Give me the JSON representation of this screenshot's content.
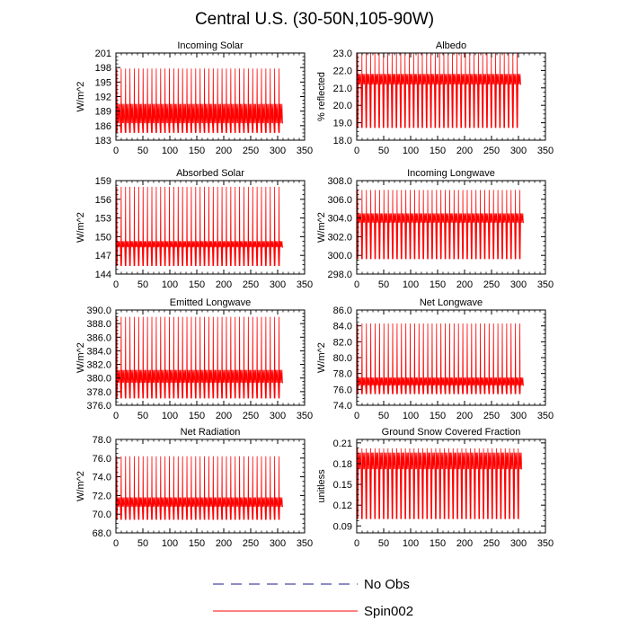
{
  "figure": {
    "title": "Central U.S. (30-50N,105-90W)",
    "legend": [
      {
        "name": "No Obs",
        "color": "#1a1a8c",
        "style": "dashed"
      },
      {
        "name": "Spin002",
        "color": "#ff0000",
        "style": "solid"
      }
    ]
  },
  "chart_data": [
    {
      "type": "line",
      "title": "Incoming Solar",
      "xlabel": "",
      "ylabel": "W/m^2",
      "xlim": [
        0,
        350
      ],
      "ylim": [
        183,
        201
      ],
      "xticks": [
        0,
        50,
        100,
        150,
        200,
        250,
        300,
        350
      ],
      "yticks": [
        183,
        186,
        189,
        192,
        195,
        198,
        201
      ],
      "ytick_labels": [
        "183",
        "186",
        "189",
        "192",
        "195",
        "198",
        "201"
      ],
      "x_end": 310,
      "cycles": 38,
      "series": [
        {
          "name": "Spin002",
          "color": "#ff0000",
          "max": 197.8,
          "min": 184.5,
          "mid_band": [
            186.5,
            190.5
          ]
        }
      ]
    },
    {
      "type": "line",
      "title": "Albedo",
      "xlabel": "",
      "ylabel": "% reflected",
      "xlim": [
        0,
        350
      ],
      "ylim": [
        18.0,
        23.0
      ],
      "xticks": [
        0,
        50,
        100,
        150,
        200,
        250,
        300,
        350
      ],
      "yticks": [
        18,
        19,
        20,
        21,
        22,
        23
      ],
      "ytick_labels": [
        "18.0",
        "19.0",
        "20.0",
        "21.0",
        "22.0",
        "23.0"
      ],
      "x_end": 305,
      "cycles": 38,
      "series": [
        {
          "name": "Spin002",
          "color": "#ff0000",
          "max": 23.0,
          "min": 18.7,
          "mid_band": [
            21.2,
            21.8
          ]
        }
      ]
    },
    {
      "type": "line",
      "title": "Absorbed Solar",
      "xlabel": "",
      "ylabel": "W/m^2",
      "xlim": [
        0,
        350
      ],
      "ylim": [
        144,
        159
      ],
      "xticks": [
        0,
        50,
        100,
        150,
        200,
        250,
        300,
        350
      ],
      "yticks": [
        144,
        147,
        150,
        153,
        156,
        159
      ],
      "ytick_labels": [
        "144",
        "147",
        "150",
        "153",
        "156",
        "159"
      ],
      "x_end": 310,
      "cycles": 38,
      "series": [
        {
          "name": "Spin002",
          "color": "#ff0000",
          "max": 158.0,
          "min": 145.3,
          "mid_band": [
            148.3,
            149.3
          ]
        }
      ]
    },
    {
      "type": "line",
      "title": "Incoming Longwave",
      "xlabel": "",
      "ylabel": "W/m^2",
      "xlim": [
        0,
        350
      ],
      "ylim": [
        298.0,
        308.0
      ],
      "xticks": [
        0,
        50,
        100,
        150,
        200,
        250,
        300,
        350
      ],
      "yticks": [
        298,
        300,
        302,
        304,
        306,
        308
      ],
      "ytick_labels": [
        "298.0",
        "300.0",
        "302.0",
        "304.0",
        "306.0",
        "308.0"
      ],
      "x_end": 310,
      "cycles": 38,
      "series": [
        {
          "name": "Spin002",
          "color": "#ff0000",
          "max": 307.0,
          "min": 299.6,
          "mid_band": [
            303.5,
            304.5
          ]
        }
      ]
    },
    {
      "type": "line",
      "title": "Emitted Longwave",
      "xlabel": "",
      "ylabel": "W/m^2",
      "xlim": [
        0,
        350
      ],
      "ylim": [
        376.0,
        390.0
      ],
      "xticks": [
        0,
        50,
        100,
        150,
        200,
        250,
        300,
        350
      ],
      "yticks": [
        376,
        378,
        380,
        382,
        384,
        386,
        388,
        390
      ],
      "ytick_labels": [
        "376.0",
        "378.0",
        "380.0",
        "382.0",
        "384.0",
        "386.0",
        "388.0",
        "390.0"
      ],
      "x_end": 310,
      "cycles": 38,
      "series": [
        {
          "name": "Spin002",
          "color": "#ff0000",
          "max": 389.0,
          "min": 377.0,
          "mid_band": [
            379.3,
            381.2
          ]
        }
      ]
    },
    {
      "type": "line",
      "title": "Net Longwave",
      "xlabel": "",
      "ylabel": "W/m^2",
      "xlim": [
        0,
        350
      ],
      "ylim": [
        74.0,
        86.0
      ],
      "xticks": [
        0,
        50,
        100,
        150,
        200,
        250,
        300,
        350
      ],
      "yticks": [
        74,
        76,
        78,
        80,
        82,
        84,
        86
      ],
      "ytick_labels": [
        "74.0",
        "76.0",
        "78.0",
        "80.0",
        "82.0",
        "84.0",
        "86.0"
      ],
      "x_end": 310,
      "cycles": 38,
      "series": [
        {
          "name": "Spin002",
          "color": "#ff0000",
          "max": 84.3,
          "min": 75.4,
          "mid_band": [
            76.5,
            77.5
          ]
        }
      ]
    },
    {
      "type": "line",
      "title": "Net Radiation",
      "xlabel": "",
      "ylabel": "W/m^2",
      "xlim": [
        0,
        350
      ],
      "ylim": [
        68.0,
        78.0
      ],
      "xticks": [
        0,
        50,
        100,
        150,
        200,
        250,
        300,
        350
      ],
      "yticks": [
        68,
        70,
        72,
        74,
        76,
        78
      ],
      "ytick_labels": [
        "68.0",
        "70.0",
        "72.0",
        "74.0",
        "76.0",
        "78.0"
      ],
      "x_end": 310,
      "cycles": 38,
      "series": [
        {
          "name": "Spin002",
          "color": "#ff0000",
          "max": 76.2,
          "min": 69.4,
          "mid_band": [
            70.8,
            71.8
          ]
        }
      ]
    },
    {
      "type": "line",
      "title": "Ground Snow Covered Fraction",
      "xlabel": "",
      "ylabel": "unitless",
      "xlim": [
        0,
        350
      ],
      "ylim": [
        0.08,
        0.215
      ],
      "xticks": [
        0,
        50,
        100,
        150,
        200,
        250,
        300,
        350
      ],
      "yticks": [
        0.09,
        0.12,
        0.15,
        0.18,
        0.21
      ],
      "ytick_labels": [
        "0.09",
        "0.12",
        "0.15",
        "0.18",
        "0.21"
      ],
      "x_end": 307,
      "cycles": 38,
      "series": [
        {
          "name": "Spin002",
          "color": "#ff0000",
          "max": 0.202,
          "min": 0.1,
          "mid_band": [
            0.172,
            0.196
          ]
        }
      ]
    }
  ]
}
